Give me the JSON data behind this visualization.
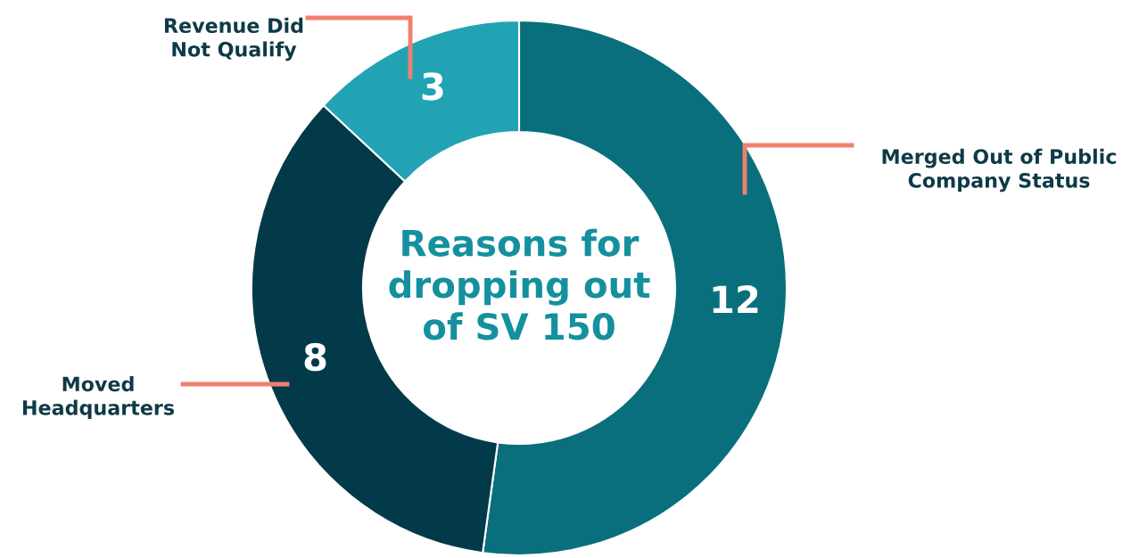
{
  "chart_data": {
    "type": "donut",
    "title": "Reasons for\ndropping out\nof SV 150",
    "categories": [
      "Merged Out of Public\nCompany Status",
      "Moved\nHeadquarters",
      "Revenue Did\nNot Qualify"
    ],
    "values": [
      12,
      8,
      3
    ],
    "colors": [
      "#0a6f7d",
      "#023a4a",
      "#22a3b4"
    ],
    "data_labels": true
  }
}
